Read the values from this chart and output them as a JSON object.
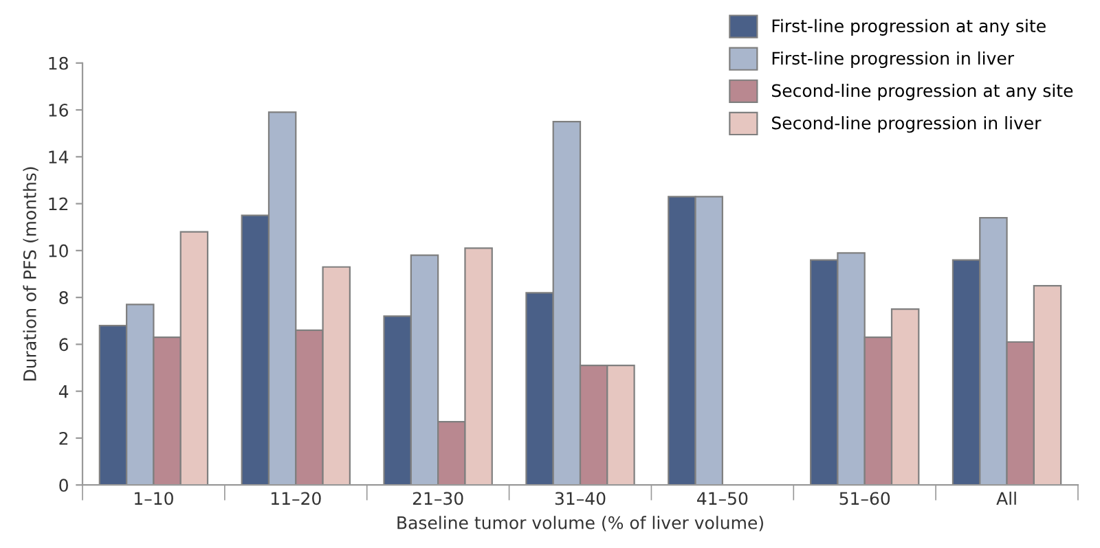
{
  "chart_data": {
    "type": "bar",
    "categories": [
      "1–10",
      "11–20",
      "21–30",
      "31–40",
      "41–50",
      "51–60",
      "All"
    ],
    "xlabel": "Baseline tumor volume (% of liver volume)",
    "ylabel": "Duration of PFS (months)",
    "ylim": [
      0,
      18
    ],
    "yticks": [
      0,
      2,
      4,
      6,
      8,
      10,
      12,
      14,
      16,
      18
    ],
    "grid": false,
    "legend": "top right",
    "series": [
      {
        "name": "First-line progression at any site",
        "color": "#4a6088",
        "values": [
          6.8,
          11.5,
          7.2,
          8.2,
          12.3,
          9.6,
          9.6
        ]
      },
      {
        "name": "First-line progression in liver",
        "color": "#a9b6cc",
        "values": [
          7.7,
          15.9,
          9.8,
          15.5,
          12.3,
          9.9,
          11.4
        ]
      },
      {
        "name": "Second-line progression at any site",
        "color": "#b98890",
        "values": [
          6.3,
          6.6,
          2.7,
          5.1,
          null,
          6.3,
          6.1
        ]
      },
      {
        "name": "Second-line progression in liver",
        "color": "#e6c6c0",
        "values": [
          10.8,
          9.3,
          10.1,
          5.1,
          null,
          7.5,
          8.5
        ]
      }
    ]
  }
}
